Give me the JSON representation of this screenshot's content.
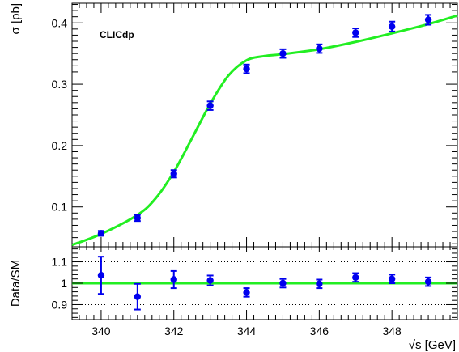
{
  "chart_data": [
    {
      "type": "scatter",
      "annotation": "CLICdp",
      "ylabel": "σ  [pb]",
      "xlim": [
        339.2,
        349.8
      ],
      "ylim": [
        0.035,
        0.432
      ],
      "y_ticks": [
        0.1,
        0.2,
        0.3,
        0.4
      ],
      "y_tick_labels": [
        "0.1",
        "0.2",
        "0.3",
        "0.4"
      ],
      "grid": false,
      "series": [
        {
          "style": "points with error bars",
          "color": "#0000ee",
          "x": [
            340,
            341,
            342,
            343,
            344,
            345,
            346,
            347,
            348,
            349
          ],
          "y": [
            0.057,
            0.082,
            0.154,
            0.265,
            0.325,
            0.35,
            0.358,
            0.384,
            0.394,
            0.405
          ],
          "err": [
            0.004,
            0.005,
            0.006,
            0.007,
            0.007,
            0.007,
            0.007,
            0.007,
            0.008,
            0.008
          ]
        },
        {
          "style": "curve",
          "color": "#22ee22",
          "x": [
            339.2,
            340.0,
            341.0,
            341.5,
            342.0,
            342.5,
            343.0,
            343.5,
            344.0,
            344.5,
            345.0,
            346.0,
            347.0,
            348.0,
            349.0,
            349.8
          ],
          "y": [
            0.038,
            0.056,
            0.087,
            0.114,
            0.157,
            0.212,
            0.268,
            0.314,
            0.339,
            0.346,
            0.349,
            0.357,
            0.369,
            0.383,
            0.398,
            0.412
          ]
        }
      ]
    },
    {
      "type": "scatter",
      "ylabel": "Data/SM",
      "xlabel": "√s  [GeV]",
      "xlim": [
        339.2,
        349.8
      ],
      "ylim": [
        0.83,
        1.17
      ],
      "x_ticks": [
        340,
        342,
        344,
        346,
        348
      ],
      "x_tick_labels": [
        "340",
        "342",
        "344",
        "346",
        "348"
      ],
      "y_ticks": [
        0.9,
        1.0,
        1.1
      ],
      "y_tick_labels": [
        "0.9",
        "1",
        "1.1"
      ],
      "reference_lines": [
        0.9,
        1.1
      ],
      "reference_line_style": "dotted",
      "unity_line": {
        "y": 1.0,
        "color": "#22ee22"
      },
      "series": [
        {
          "style": "points with error bars",
          "color": "#0000ee",
          "x": [
            340,
            341,
            342,
            343,
            344,
            345,
            346,
            347,
            348,
            349
          ],
          "y": [
            1.037,
            0.937,
            1.017,
            1.013,
            0.957,
            1.0,
            0.997,
            1.027,
            1.02,
            1.007
          ],
          "err": [
            0.087,
            0.06,
            0.04,
            0.023,
            0.02,
            0.02,
            0.02,
            0.02,
            0.02,
            0.02
          ]
        }
      ]
    }
  ]
}
